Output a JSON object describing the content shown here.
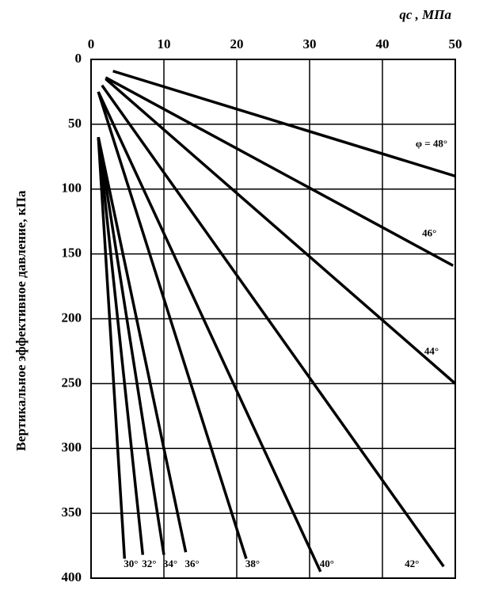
{
  "chart_data": {
    "type": "line",
    "x_label": "qc , МПа",
    "y_label": "Вертикальное эффективное давление, кПа",
    "xlim": [
      0,
      50
    ],
    "xticks": [
      0,
      10,
      20,
      30,
      40,
      50
    ],
    "ylim": [
      0,
      400
    ],
    "yticks": [
      0,
      50,
      100,
      150,
      200,
      250,
      300,
      350,
      400
    ],
    "y_inverted": true,
    "x_axis_position": "top",
    "grid": true,
    "color": "#000000",
    "series": [
      {
        "name": "φ = 48°",
        "x": [
          3,
          50
        ],
        "values": [
          9,
          90
        ]
      },
      {
        "name": "46°",
        "x": [
          2,
          49.7
        ],
        "values": [
          14,
          159
        ]
      },
      {
        "name": "44°",
        "x": [
          2,
          50
        ],
        "values": [
          15,
          250
        ]
      },
      {
        "name": "42°",
        "x": [
          1.5,
          48.4
        ],
        "values": [
          20,
          391
        ]
      },
      {
        "name": "40°",
        "x": [
          1,
          31.5
        ],
        "values": [
          25,
          395
        ]
      },
      {
        "name": "38°",
        "x": [
          1,
          21.3
        ],
        "values": [
          25,
          385
        ]
      },
      {
        "name": "36°",
        "x": [
          1,
          13
        ],
        "values": [
          60,
          380
        ]
      },
      {
        "name": "34°",
        "x": [
          1,
          10
        ],
        "values": [
          60,
          382
        ]
      },
      {
        "name": "32°",
        "x": [
          1,
          7.1
        ],
        "values": [
          60,
          382
        ]
      },
      {
        "name": "30°",
        "x": [
          1,
          4.6
        ],
        "values": [
          60,
          385
        ]
      }
    ]
  }
}
